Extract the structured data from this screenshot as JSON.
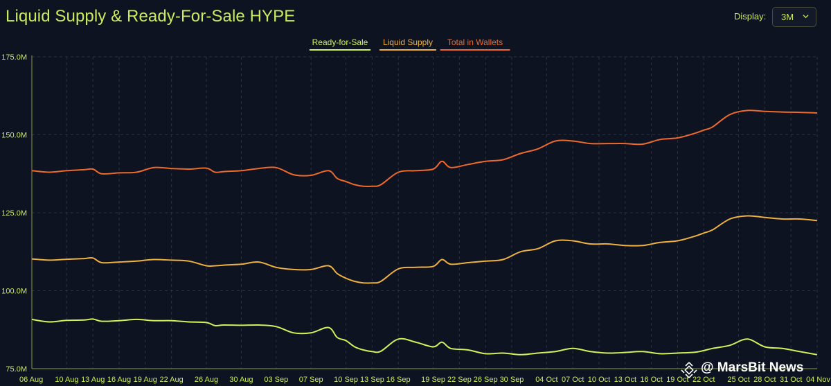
{
  "header": {
    "title": "Liquid Supply & Ready-For-Sale HYPE",
    "display_label": "Display:",
    "display_value": "3M"
  },
  "watermark": "@ MarsBit News",
  "colors": {
    "background": "#0e1322",
    "accent": "#c8ec5c",
    "ready_for_sale": "#d4f05a",
    "liquid_supply": "#f0b23e",
    "total_in_wallets": "#ee6a2a",
    "grid": "#2b3040"
  },
  "chart_data": {
    "type": "line",
    "title": "Liquid Supply & Ready-For-Sale HYPE",
    "xlabel": "",
    "ylabel": "",
    "ylim": [
      75,
      175
    ],
    "yticks": [
      75,
      100,
      125,
      150,
      175
    ],
    "ytick_labels": [
      "75.0M",
      "100.0M",
      "125.0M",
      "150.0M",
      "175.0M"
    ],
    "xlim": [
      0,
      90
    ],
    "xticks": [
      0,
      4,
      7,
      10,
      13,
      16,
      20,
      24,
      28,
      32,
      36,
      39,
      42,
      46,
      49,
      52,
      55,
      59,
      62,
      65,
      68,
      71,
      74,
      77,
      81,
      84,
      87,
      90
    ],
    "xtick_labels": [
      "06 Aug",
      "10 Aug",
      "13 Aug",
      "16 Aug",
      "19 Aug",
      "22 Aug",
      "26 Aug",
      "30 Aug",
      "03 Sep",
      "07 Sep",
      "10 Sep",
      "13 Sep",
      "16 Sep",
      "19 Sep",
      "22 Sep",
      "26 Sep",
      "30 Sep",
      "04 Oct",
      "07 Oct",
      "10 Oct",
      "13 Oct",
      "16 Oct",
      "19 Oct",
      "22 Oct",
      "25 Oct",
      "28 Oct",
      "31 Oct",
      "04 Nov"
    ],
    "legend_position": "top-center",
    "grid": true,
    "series": [
      {
        "name": "Ready-for-Sale",
        "color": "#d4f05a",
        "x": [
          0,
          2,
          4,
          6,
          7,
          8,
          10,
          12,
          14,
          16,
          18,
          20,
          21,
          22,
          24,
          26,
          28,
          30,
          32,
          34,
          35,
          36,
          37,
          38,
          39,
          40,
          42,
          44,
          46,
          47,
          48,
          50,
          52,
          54,
          56,
          58,
          60,
          62,
          64,
          66,
          68,
          70,
          72,
          74,
          76,
          77,
          78,
          80,
          82,
          84,
          86,
          88,
          90
        ],
        "values": [
          90.8,
          90.0,
          90.5,
          90.6,
          90.9,
          90.2,
          90.4,
          90.8,
          90.4,
          90.4,
          90.0,
          89.8,
          88.8,
          89.0,
          88.9,
          89.0,
          88.5,
          86.5,
          86.5,
          88.2,
          85.0,
          84.0,
          82.0,
          81.0,
          80.5,
          80.6,
          84.5,
          83.5,
          82.0,
          83.5,
          81.5,
          81.0,
          79.8,
          80.0,
          79.5,
          80.0,
          80.5,
          81.5,
          80.5,
          80.0,
          80.2,
          80.5,
          79.8,
          80.0,
          80.3,
          80.8,
          81.5,
          82.5,
          84.5,
          82.0,
          81.5,
          80.5,
          79.5
        ]
      },
      {
        "name": "Liquid Supply",
        "color": "#f0b23e",
        "x": [
          0,
          2,
          4,
          6,
          7,
          8,
          10,
          12,
          14,
          16,
          18,
          20,
          21,
          22,
          24,
          26,
          28,
          30,
          32,
          34,
          35,
          36,
          37,
          38,
          39,
          40,
          42,
          44,
          46,
          47,
          48,
          50,
          52,
          54,
          56,
          58,
          60,
          62,
          64,
          66,
          68,
          70,
          72,
          74,
          76,
          77,
          78,
          80,
          82,
          84,
          86,
          88,
          90
        ],
        "values": [
          110.2,
          109.8,
          110.1,
          110.3,
          110.5,
          109.0,
          109.2,
          109.5,
          110.0,
          109.8,
          109.5,
          108.0,
          108.0,
          108.2,
          108.5,
          109.2,
          107.5,
          106.8,
          106.8,
          108.0,
          105.5,
          104.0,
          103.0,
          102.5,
          102.5,
          103.0,
          107.0,
          107.5,
          107.8,
          110.0,
          108.5,
          109.0,
          109.5,
          110.0,
          112.5,
          113.5,
          116.0,
          116.0,
          115.0,
          115.0,
          114.5,
          114.5,
          115.5,
          116.0,
          117.5,
          118.5,
          119.5,
          123.0,
          124.0,
          123.5,
          123.0,
          123.0,
          122.5
        ]
      },
      {
        "name": "Total in Wallets",
        "color": "#ee6a2a",
        "x": [
          0,
          2,
          4,
          6,
          7,
          8,
          10,
          12,
          14,
          16,
          18,
          20,
          21,
          22,
          24,
          26,
          28,
          30,
          32,
          34,
          35,
          36,
          37,
          38,
          39,
          40,
          42,
          44,
          46,
          47,
          48,
          50,
          52,
          54,
          56,
          58,
          60,
          62,
          64,
          66,
          68,
          70,
          72,
          74,
          76,
          77,
          78,
          80,
          82,
          84,
          86,
          88,
          90
        ],
        "values": [
          138.5,
          138.0,
          138.5,
          138.8,
          139.0,
          137.5,
          137.8,
          138.0,
          139.5,
          139.2,
          139.0,
          139.3,
          138.0,
          138.2,
          138.5,
          139.2,
          139.5,
          137.2,
          137.0,
          138.5,
          136.0,
          135.0,
          134.0,
          133.5,
          133.5,
          134.0,
          138.0,
          138.5,
          139.0,
          141.5,
          139.5,
          140.5,
          141.5,
          142.0,
          144.0,
          145.5,
          148.0,
          148.0,
          147.2,
          147.2,
          147.2,
          147.0,
          148.5,
          149.0,
          150.5,
          151.5,
          152.5,
          156.5,
          157.8,
          157.5,
          157.3,
          157.2,
          157.0
        ]
      }
    ]
  }
}
